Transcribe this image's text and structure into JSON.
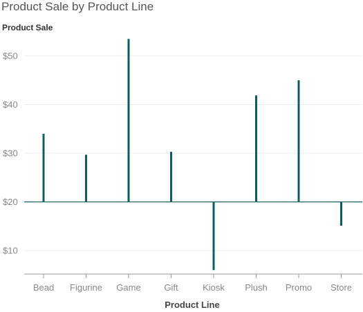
{
  "chart_data": {
    "type": "bar",
    "style": "needle",
    "title": "Product Sale by Product Line",
    "xlabel": "Product Line",
    "ylabel": "Product Sale",
    "baseline": 20,
    "ylim": [
      5,
      56
    ],
    "yticks": [
      10,
      20,
      30,
      40,
      50
    ],
    "ytick_labels": [
      "$10",
      "$20",
      "$30",
      "$40",
      "$50"
    ],
    "categories": [
      "Bead",
      "Figurine",
      "Game",
      "Gift",
      "Kiosk",
      "Plush",
      "Promo",
      "Store"
    ],
    "values": [
      34,
      29.7,
      53.5,
      30.3,
      6,
      41.9,
      45,
      15.1
    ],
    "grid": true,
    "bar_color": "#0d5f5c",
    "axis_color": "#0d5f5c"
  }
}
